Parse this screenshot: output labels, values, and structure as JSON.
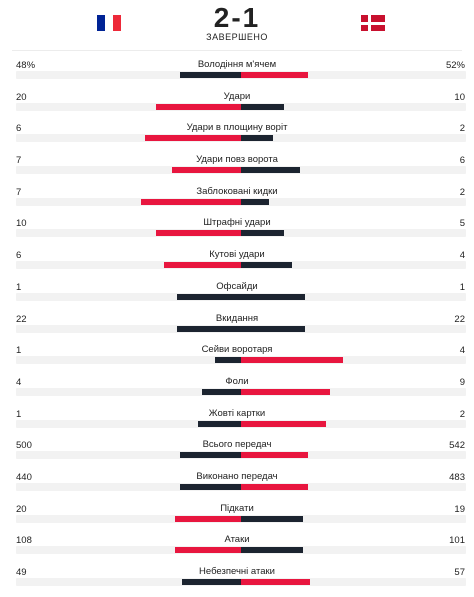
{
  "header": {
    "home_flag": "france-flag",
    "away_flag": "denmark-flag",
    "score": "2-1",
    "status": "ЗАВЕРШЕНО"
  },
  "colors": {
    "leader": "#e8163f",
    "trailer": "#1c2430",
    "track": "#f2f2f2"
  },
  "stats": [
    {
      "name": "Володіння м'ячем",
      "left": "48%",
      "right": "52%",
      "lv": 48,
      "rv": 52
    },
    {
      "name": "Удари",
      "left": "20",
      "right": "10",
      "lv": 20,
      "rv": 10
    },
    {
      "name": "Удари в площину воріт",
      "left": "6",
      "right": "2",
      "lv": 6,
      "rv": 2
    },
    {
      "name": "Удари повз ворота",
      "left": "7",
      "right": "6",
      "lv": 7,
      "rv": 6
    },
    {
      "name": "Заблоковані кидки",
      "left": "7",
      "right": "2",
      "lv": 7,
      "rv": 2
    },
    {
      "name": "Штрафні удари",
      "left": "10",
      "right": "5",
      "lv": 10,
      "rv": 5
    },
    {
      "name": "Кутові удари",
      "left": "6",
      "right": "4",
      "lv": 6,
      "rv": 4
    },
    {
      "name": "Офсайди",
      "left": "1",
      "right": "1",
      "lv": 1,
      "rv": 1
    },
    {
      "name": "Вкидання",
      "left": "22",
      "right": "22",
      "lv": 22,
      "rv": 22
    },
    {
      "name": "Сейви воротаря",
      "left": "1",
      "right": "4",
      "lv": 1,
      "rv": 4
    },
    {
      "name": "Фоли",
      "left": "4",
      "right": "9",
      "lv": 4,
      "rv": 9
    },
    {
      "name": "Жовті картки",
      "left": "1",
      "right": "2",
      "lv": 1,
      "rv": 2
    },
    {
      "name": "Всього передач",
      "left": "500",
      "right": "542",
      "lv": 500,
      "rv": 542
    },
    {
      "name": "Виконано передач",
      "left": "440",
      "right": "483",
      "lv": 440,
      "rv": 483
    },
    {
      "name": "Підкати",
      "left": "20",
      "right": "19",
      "lv": 20,
      "rv": 19
    },
    {
      "name": "Атаки",
      "left": "108",
      "right": "101",
      "lv": 108,
      "rv": 101
    },
    {
      "name": "Небезпечні атаки",
      "left": "49",
      "right": "57",
      "lv": 49,
      "rv": 57
    }
  ]
}
